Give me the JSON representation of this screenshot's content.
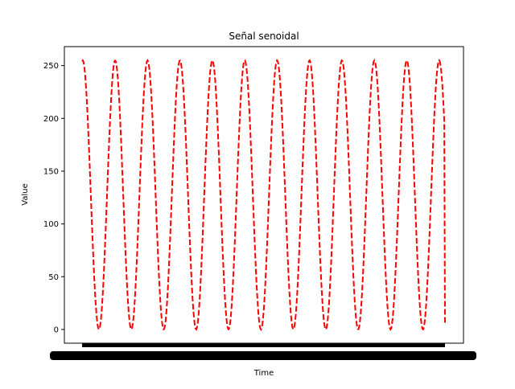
{
  "chart_data": {
    "type": "line",
    "title": "Señal senoidal",
    "xlabel": "Time",
    "ylabel": "Value",
    "ylim": [
      -13,
      268
    ],
    "yticks": [
      0,
      50,
      100,
      150,
      200,
      250
    ],
    "ytick_labels": [
      "0",
      "50",
      "100",
      "150",
      "200",
      "250"
    ],
    "grid": false,
    "legend": "none",
    "series": [
      {
        "color": "#ff0000",
        "line_style": "dashed",
        "cycles": 11.2,
        "amplitude": 127.5,
        "offset": 127.5,
        "start_value": 254,
        "end_value": 6,
        "num_samples": 500
      }
    ]
  }
}
